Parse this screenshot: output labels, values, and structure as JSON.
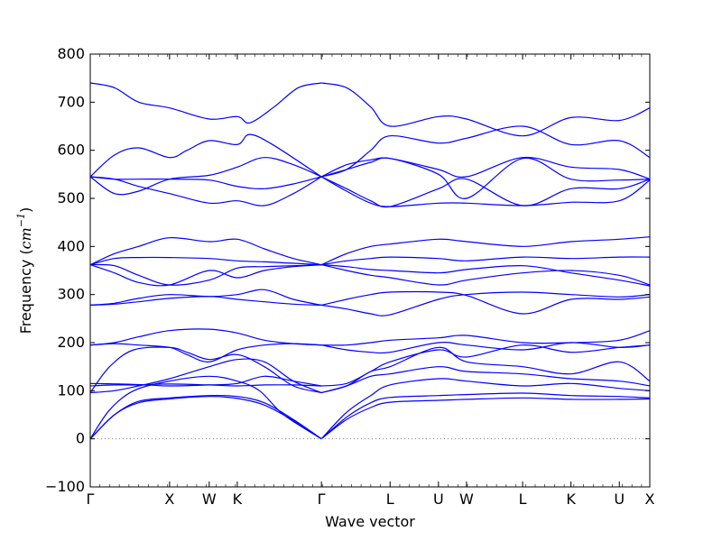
{
  "chart_data": {
    "type": "line",
    "title": "",
    "xlabel": "Wave vector",
    "ylabel_prefix": "Frequency (",
    "ylabel_unit_base": "cm",
    "ylabel_unit_exp": "−1",
    "ylabel_suffix": ")",
    "ylim": [
      -100,
      800
    ],
    "yticks": [
      -100,
      0,
      100,
      200,
      300,
      400,
      500,
      600,
      700,
      800
    ],
    "grid": false,
    "line_color": "#0000ff",
    "zero_line_color": "#808080",
    "xlim": [
      0,
      11.57
    ],
    "k_points": [
      {
        "label": "Γ",
        "x": 0
      },
      {
        "label": "X",
        "x": 1.64
      },
      {
        "label": "W",
        "x": 2.46
      },
      {
        "label": "K",
        "x": 3.04
      },
      {
        "label": "Γ",
        "x": 4.78
      },
      {
        "label": "L",
        "x": 6.2
      },
      {
        "label": "U",
        "x": 7.2
      },
      {
        "label": "W",
        "x": 7.78
      },
      {
        "label": "L",
        "x": 8.94
      },
      {
        "label": "K",
        "x": 9.94
      },
      {
        "label": "U",
        "x": 10.94
      },
      {
        "label": "X",
        "x": 11.57
      }
    ],
    "series": [
      {
        "x": [
          0,
          0.5,
          1.0,
          1.64,
          2.46,
          3.04,
          3.6,
          4.2,
          4.78
        ],
        "y": [
          0,
          50,
          75,
          83,
          88,
          84,
          70,
          38,
          0
        ]
      },
      {
        "x": [
          0,
          0.5,
          1.0,
          1.64,
          2.46,
          3.04,
          3.6,
          4.2,
          4.78
        ],
        "y": [
          0,
          50,
          78,
          85,
          90,
          88,
          75,
          40,
          0
        ]
      },
      {
        "x": [
          0,
          0.4,
          0.9,
          1.64,
          2.46,
          3.04,
          3.5,
          4.0,
          4.78
        ],
        "y": [
          0,
          60,
          100,
          120,
          130,
          120,
          100,
          50,
          0
        ]
      },
      {
        "x": [
          4.78,
          5.3,
          5.8,
          6.2,
          7.2,
          7.78,
          8.94,
          9.94,
          10.94,
          11.57
        ],
        "y": [
          0,
          40,
          65,
          76,
          80,
          82,
          85,
          82,
          82,
          83
        ]
      },
      {
        "x": [
          4.78,
          5.3,
          5.8,
          6.2,
          7.2,
          7.78,
          8.94,
          9.94,
          10.94,
          11.57
        ],
        "y": [
          0,
          45,
          75,
          86,
          90,
          92,
          95,
          90,
          88,
          85
        ]
      },
      {
        "x": [
          4.78,
          5.3,
          5.8,
          6.2,
          7.2,
          7.78,
          8.94,
          9.94,
          10.94,
          11.57
        ],
        "y": [
          0,
          55,
          90,
          112,
          125,
          120,
          110,
          115,
          105,
          100
        ]
      },
      {
        "x": [
          0,
          0.5,
          1.0,
          1.64,
          2.46,
          3.04,
          3.6,
          4.2,
          4.78
        ],
        "y": [
          96,
          100,
          110,
          125,
          150,
          165,
          160,
          120,
          96
        ]
      },
      {
        "x": [
          0,
          0.4,
          0.9,
          1.64,
          2.0,
          2.46,
          3.04,
          3.6,
          4.2,
          4.78
        ],
        "y": [
          96,
          150,
          185,
          190,
          180,
          165,
          175,
          150,
          110,
          96
        ]
      },
      {
        "x": [
          0,
          0.5,
          1.0,
          1.64,
          2.46,
          3.04,
          3.6,
          4.2,
          4.78
        ],
        "y": [
          110,
          112,
          112,
          114,
          112,
          110,
          112,
          112,
          110
        ]
      },
      {
        "x": [
          0,
          0.6,
          1.2,
          1.64,
          2.46,
          3.04,
          3.6,
          4.2,
          4.78
        ],
        "y": [
          115,
          114,
          112,
          110,
          112,
          115,
          130,
          120,
          110
        ]
      },
      {
        "x": [
          0,
          0.5,
          1.0,
          1.64,
          2.46,
          3.04,
          3.6,
          4.2,
          4.78
        ],
        "y": [
          195,
          200,
          212,
          225,
          228,
          220,
          205,
          198,
          195
        ]
      },
      {
        "x": [
          0,
          0.5,
          1.0,
          1.64,
          2.0,
          2.46,
          3.04,
          3.6,
          4.2,
          4.78
        ],
        "y": [
          195,
          198,
          195,
          190,
          175,
          160,
          185,
          195,
          198,
          195
        ]
      },
      {
        "x": [
          4.78,
          5.3,
          5.8,
          6.2,
          7.2,
          7.78,
          8.94,
          9.94,
          10.94,
          11.57
        ],
        "y": [
          96,
          110,
          140,
          150,
          190,
          160,
          150,
          135,
          160,
          120
        ]
      },
      {
        "x": [
          4.78,
          5.3,
          5.8,
          6.2,
          7.2,
          7.78,
          8.94,
          9.94,
          10.94,
          11.57
        ],
        "y": [
          96,
          110,
          130,
          135,
          150,
          140,
          135,
          125,
          120,
          110
        ]
      },
      {
        "x": [
          4.78,
          5.3,
          5.8,
          6.2,
          7.2,
          7.78,
          8.94,
          9.94,
          10.94,
          11.57
        ],
        "y": [
          110,
          115,
          140,
          160,
          185,
          170,
          195,
          180,
          190,
          195
        ]
      },
      {
        "x": [
          4.78,
          5.3,
          5.8,
          6.2,
          7.2,
          7.78,
          8.94,
          9.94,
          10.94,
          11.57
        ],
        "y": [
          195,
          195,
          200,
          205,
          210,
          215,
          200,
          200,
          205,
          225
        ]
      },
      {
        "x": [
          4.78,
          5.3,
          5.8,
          6.2,
          7.2,
          7.78,
          8.94,
          9.94,
          10.94,
          11.57
        ],
        "y": [
          195,
          185,
          180,
          180,
          200,
          195,
          185,
          200,
          190,
          195
        ]
      },
      {
        "x": [
          0,
          0.5,
          1.0,
          1.64,
          2.46,
          3.04,
          3.6,
          4.2,
          4.78
        ],
        "y": [
          278,
          282,
          292,
          300,
          296,
          300,
          310,
          290,
          278
        ]
      },
      {
        "x": [
          0,
          0.5,
          1.0,
          1.64,
          2.46,
          3.04,
          3.6,
          4.2,
          4.78
        ],
        "y": [
          278,
          280,
          285,
          292,
          296,
          290,
          285,
          280,
          278
        ]
      },
      {
        "x": [
          4.78,
          5.3,
          5.8,
          6.2,
          7.2,
          7.78,
          8.94,
          9.94,
          10.94,
          11.57
        ],
        "y": [
          278,
          270,
          260,
          258,
          290,
          300,
          305,
          300,
          295,
          300
        ]
      },
      {
        "x": [
          4.78,
          5.3,
          5.8,
          6.2,
          7.2,
          7.78,
          8.94,
          9.94,
          10.94,
          11.57
        ],
        "y": [
          278,
          290,
          300,
          305,
          305,
          298,
          260,
          290,
          290,
          295
        ]
      },
      {
        "x": [
          0,
          0.5,
          1.0,
          1.64,
          2.46,
          3.04,
          3.6,
          4.2,
          4.78
        ],
        "y": [
          362,
          385,
          400,
          418,
          410,
          415,
          395,
          375,
          362
        ]
      },
      {
        "x": [
          0,
          0.5,
          1.0,
          1.64,
          2.46,
          3.04,
          3.6,
          4.2,
          4.78
        ],
        "y": [
          362,
          375,
          377,
          377,
          375,
          370,
          368,
          365,
          362
        ]
      },
      {
        "x": [
          0,
          0.5,
          1.0,
          1.64,
          2.46,
          3.04,
          3.6,
          4.2,
          4.78
        ],
        "y": [
          362,
          345,
          325,
          320,
          350,
          335,
          350,
          358,
          362
        ]
      },
      {
        "x": [
          0,
          0.5,
          1.0,
          1.64,
          2.46,
          3.04,
          3.6,
          4.2,
          4.78
        ],
        "y": [
          362,
          360,
          340,
          320,
          330,
          355,
          358,
          360,
          362
        ]
      },
      {
        "x": [
          4.78,
          5.3,
          5.8,
          6.2,
          7.2,
          7.78,
          8.94,
          9.94,
          10.94,
          11.57
        ],
        "y": [
          362,
          385,
          400,
          405,
          415,
          410,
          400,
          410,
          415,
          420
        ]
      },
      {
        "x": [
          4.78,
          5.3,
          5.8,
          6.2,
          7.2,
          7.78,
          8.94,
          9.94,
          10.94,
          11.57
        ],
        "y": [
          362,
          370,
          375,
          378,
          375,
          370,
          378,
          375,
          378,
          378
        ]
      },
      {
        "x": [
          4.78,
          5.3,
          5.8,
          6.2,
          7.2,
          7.78,
          8.94,
          9.94,
          10.94,
          11.57
        ],
        "y": [
          362,
          358,
          352,
          350,
          345,
          352,
          360,
          345,
          330,
          318
        ]
      },
      {
        "x": [
          4.78,
          5.3,
          5.8,
          6.2,
          7.2,
          7.78,
          8.94,
          9.94,
          10.94,
          11.57
        ],
        "y": [
          362,
          350,
          340,
          335,
          320,
          330,
          345,
          350,
          340,
          320
        ]
      },
      {
        "x": [
          0,
          0.5,
          1.0,
          1.64,
          2.46,
          3.04,
          3.6,
          4.2,
          4.78
        ],
        "y": [
          545,
          510,
          515,
          540,
          548,
          565,
          585,
          570,
          545
        ]
      },
      {
        "x": [
          0,
          0.5,
          1.0,
          1.64,
          2.46,
          3.04,
          3.6,
          4.2,
          4.78
        ],
        "y": [
          545,
          540,
          525,
          510,
          490,
          495,
          485,
          510,
          545
        ]
      },
      {
        "x": [
          0,
          0.5,
          1.0,
          1.64,
          2.46,
          3.04,
          3.6,
          4.2,
          4.78
        ],
        "y": [
          545,
          540,
          540,
          540,
          538,
          525,
          520,
          530,
          545
        ]
      },
      {
        "x": [
          0,
          0.5,
          1.0,
          1.64,
          2.0,
          2.46,
          3.04,
          3.3,
          3.8,
          4.78
        ],
        "y": [
          545,
          590,
          605,
          585,
          600,
          620,
          612,
          633,
          610,
          545
        ]
      },
      {
        "x": [
          0,
          0.5,
          1.0,
          1.64,
          2.46,
          3.04,
          3.3,
          3.8,
          4.3,
          4.78
        ],
        "y": [
          740,
          730,
          700,
          688,
          665,
          670,
          657,
          690,
          730,
          740
        ]
      },
      {
        "x": [
          4.78,
          5.3,
          5.8,
          6.2,
          7.2,
          7.78,
          8.94,
          9.94,
          10.94,
          11.57
        ],
        "y": [
          740,
          730,
          690,
          650,
          670,
          665,
          630,
          668,
          662,
          688
        ]
      },
      {
        "x": [
          4.78,
          5.3,
          5.8,
          6.2,
          7.2,
          7.78,
          8.94,
          9.94,
          10.94,
          11.57
        ],
        "y": [
          545,
          560,
          600,
          630,
          615,
          625,
          650,
          612,
          620,
          585
        ]
      },
      {
        "x": [
          4.78,
          5.3,
          5.8,
          6.2,
          7.2,
          7.78,
          8.94,
          9.94,
          10.94,
          11.57
        ],
        "y": [
          545,
          570,
          580,
          583,
          560,
          545,
          585,
          565,
          560,
          540
        ]
      },
      {
        "x": [
          4.78,
          5.3,
          5.8,
          6.2,
          7.2,
          7.78,
          8.94,
          9.94,
          10.94,
          11.57
        ],
        "y": [
          545,
          515,
          490,
          483,
          490,
          490,
          485,
          492,
          495,
          538
        ]
      },
      {
        "x": [
          4.78,
          5.3,
          5.8,
          6.2,
          7.2,
          7.78,
          8.94,
          9.94,
          10.94,
          11.57
        ],
        "y": [
          545,
          520,
          495,
          483,
          520,
          540,
          485,
          520,
          520,
          540
        ]
      },
      {
        "x": [
          4.78,
          5.3,
          5.8,
          6.2,
          7.2,
          7.78,
          8.94,
          9.94,
          10.94,
          11.57
        ],
        "y": [
          545,
          560,
          575,
          583,
          550,
          500,
          583,
          540,
          538,
          540
        ]
      }
    ]
  }
}
